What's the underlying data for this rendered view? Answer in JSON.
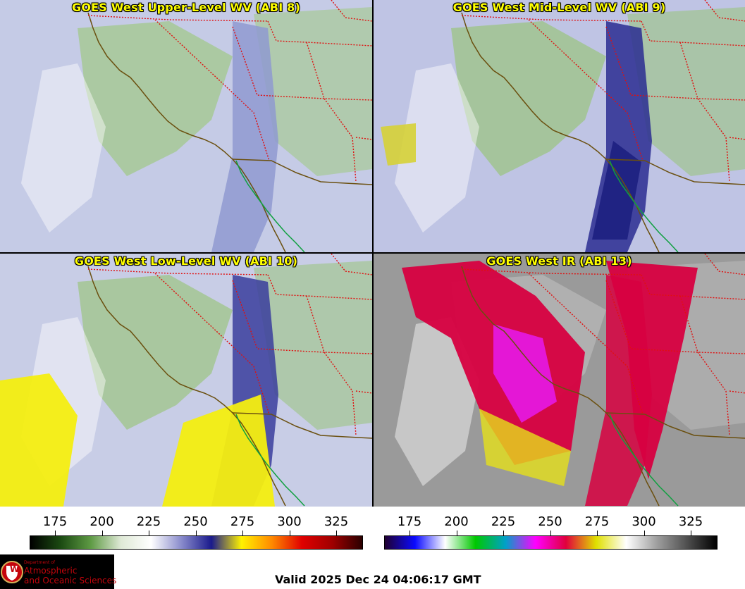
{
  "panels": [
    {
      "id": "upper",
      "title": "GOES West Upper-Level WV (ABI 8)",
      "colors": {
        "base": "#c5cbe6",
        "land": "#a6c995",
        "band": "#8f9ad0",
        "dark": "#3c3f9a",
        "warm": "#d8d63a"
      }
    },
    {
      "id": "mid",
      "title": "GOES West Mid-Level WV (ABI 9)",
      "colors": {
        "base": "#bfc4e4",
        "land": "#a0c48f",
        "band": "#2a2d92",
        "dark": "#16187a",
        "warm": "#d6d236"
      }
    },
    {
      "id": "low",
      "title": "GOES West Low-Level WV (ABI 10)",
      "colors": {
        "base": "#c8cde6",
        "land": "#a3c692",
        "band": "#3a3d9c",
        "dark": "#1e2080",
        "warm": "#f4ee10"
      }
    },
    {
      "id": "ir",
      "title": "GOES West IR (ABI 13)",
      "colors": {
        "base": "#9a9a9a",
        "land": "#b4b4b4",
        "band": "#d70040",
        "dark": "#e61ae6",
        "warm": "#e5e01a"
      }
    }
  ],
  "colorbars": [
    {
      "name": "water-vapor-scale",
      "ticks": [
        "175",
        "200",
        "225",
        "250",
        "275",
        "300",
        "325"
      ],
      "stops": [
        "#000000",
        "#1b4a12",
        "#5e9a44",
        "#dfe9d6",
        "#ffffff",
        "#8a8ccc",
        "#1a1a8c",
        "#fff200",
        "#ff8a00",
        "#e00000",
        "#a00000",
        "#2a0000"
      ]
    },
    {
      "name": "infrared-scale",
      "ticks": [
        "175",
        "200",
        "225",
        "250",
        "275",
        "300",
        "325"
      ],
      "stops": [
        "#200030",
        "#0a0aff",
        "#ffffff",
        "#00c800",
        "#00a0c8",
        "#ff00ff",
        "#e0003c",
        "#e0e000",
        "#ffffff",
        "#a0a0a0",
        "#505050",
        "#000000"
      ]
    }
  ],
  "logo": {
    "dept": "Department of",
    "line1": "Atmospheric",
    "line2": "and Oceanic Sciences",
    "seal": "W"
  },
  "valid_time": "Valid 2025 Dec 24 04:06:17 GMT"
}
